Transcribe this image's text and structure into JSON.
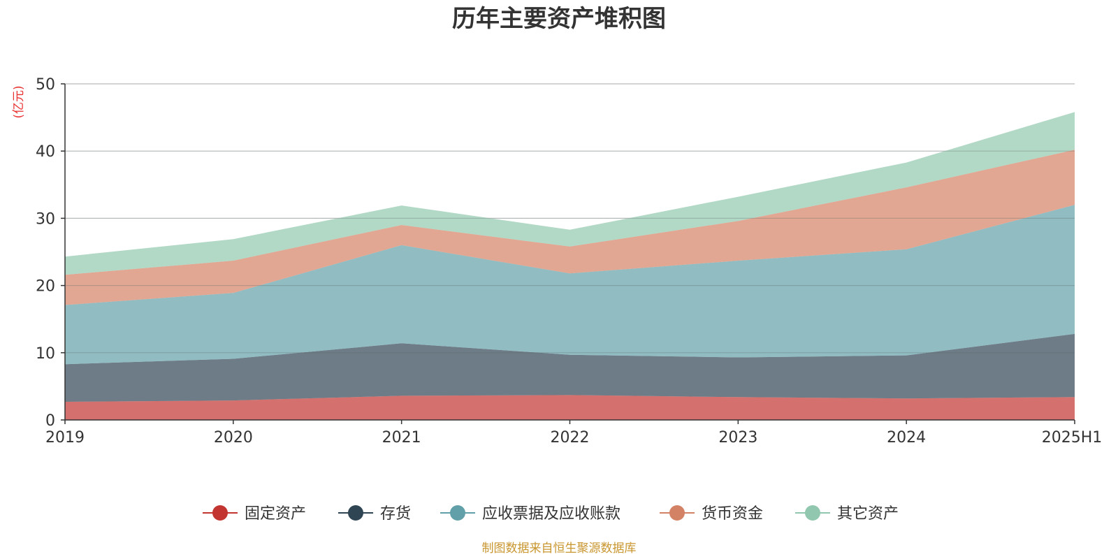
{
  "chart_data": {
    "type": "area",
    "stacked": true,
    "title": "历年主要资产堆积图",
    "unit": "(亿元)",
    "categories": [
      "2019",
      "2020",
      "2021",
      "2022",
      "2023",
      "2024",
      "2025H1"
    ],
    "ylim": [
      0,
      50
    ],
    "yticks": [
      0,
      10,
      20,
      30,
      40,
      50
    ],
    "grid": true,
    "legend_position": "bottom",
    "series": [
      {
        "name": "固定资产",
        "color": "#c23531",
        "values": [
          2.7,
          2.9,
          3.6,
          3.7,
          3.4,
          3.2,
          3.4
        ]
      },
      {
        "name": "存货",
        "color": "#2f4554",
        "values": [
          5.6,
          6.2,
          7.8,
          6.0,
          5.9,
          6.4,
          9.4
        ]
      },
      {
        "name": "应收票据及应收账款",
        "color": "#61a0a8",
        "values": [
          8.8,
          9.8,
          14.6,
          12.1,
          14.4,
          15.8,
          19.2
        ]
      },
      {
        "name": "货币资金",
        "color": "#d48265",
        "values": [
          4.5,
          4.8,
          3.0,
          4.0,
          5.9,
          9.2,
          8.2
        ]
      },
      {
        "name": "其它资产",
        "color": "#91c7ae",
        "values": [
          2.7,
          3.2,
          2.9,
          2.5,
          3.6,
          3.7,
          5.6
        ]
      }
    ],
    "source": "制图数据来自恒生聚源数据库"
  }
}
